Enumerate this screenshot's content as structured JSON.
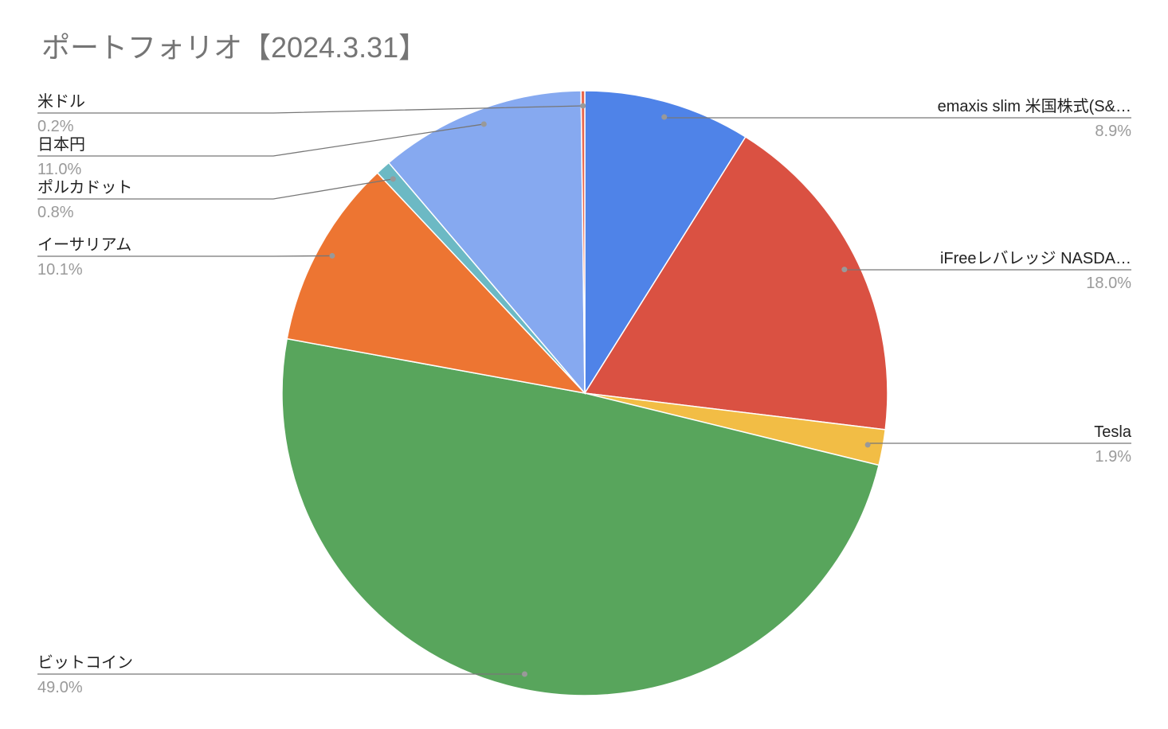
{
  "chart_data": {
    "type": "pie",
    "title": "ポートフォリオ【2024.3.31】",
    "categories": [
      "emaxis slim 米国株式(S&…",
      "iFreeレバレッジ NASDA…",
      "Tesla",
      "ビットコイン",
      "イーサリアム",
      "ポルカドット",
      "日本円",
      "米ドル"
    ],
    "values": [
      8.9,
      18.0,
      1.9,
      49.0,
      10.1,
      0.8,
      11.0,
      0.2
    ],
    "value_labels": [
      "8.9%",
      "18.0%",
      "1.9%",
      "49.0%",
      "10.1%",
      "0.8%",
      "11.0%",
      "0.2%"
    ],
    "colors": [
      "#4f83e8",
      "#da5142",
      "#f2bd45",
      "#58a55c",
      "#ed7532",
      "#6cb9c4",
      "#86a9f0",
      "#e8674c"
    ]
  }
}
